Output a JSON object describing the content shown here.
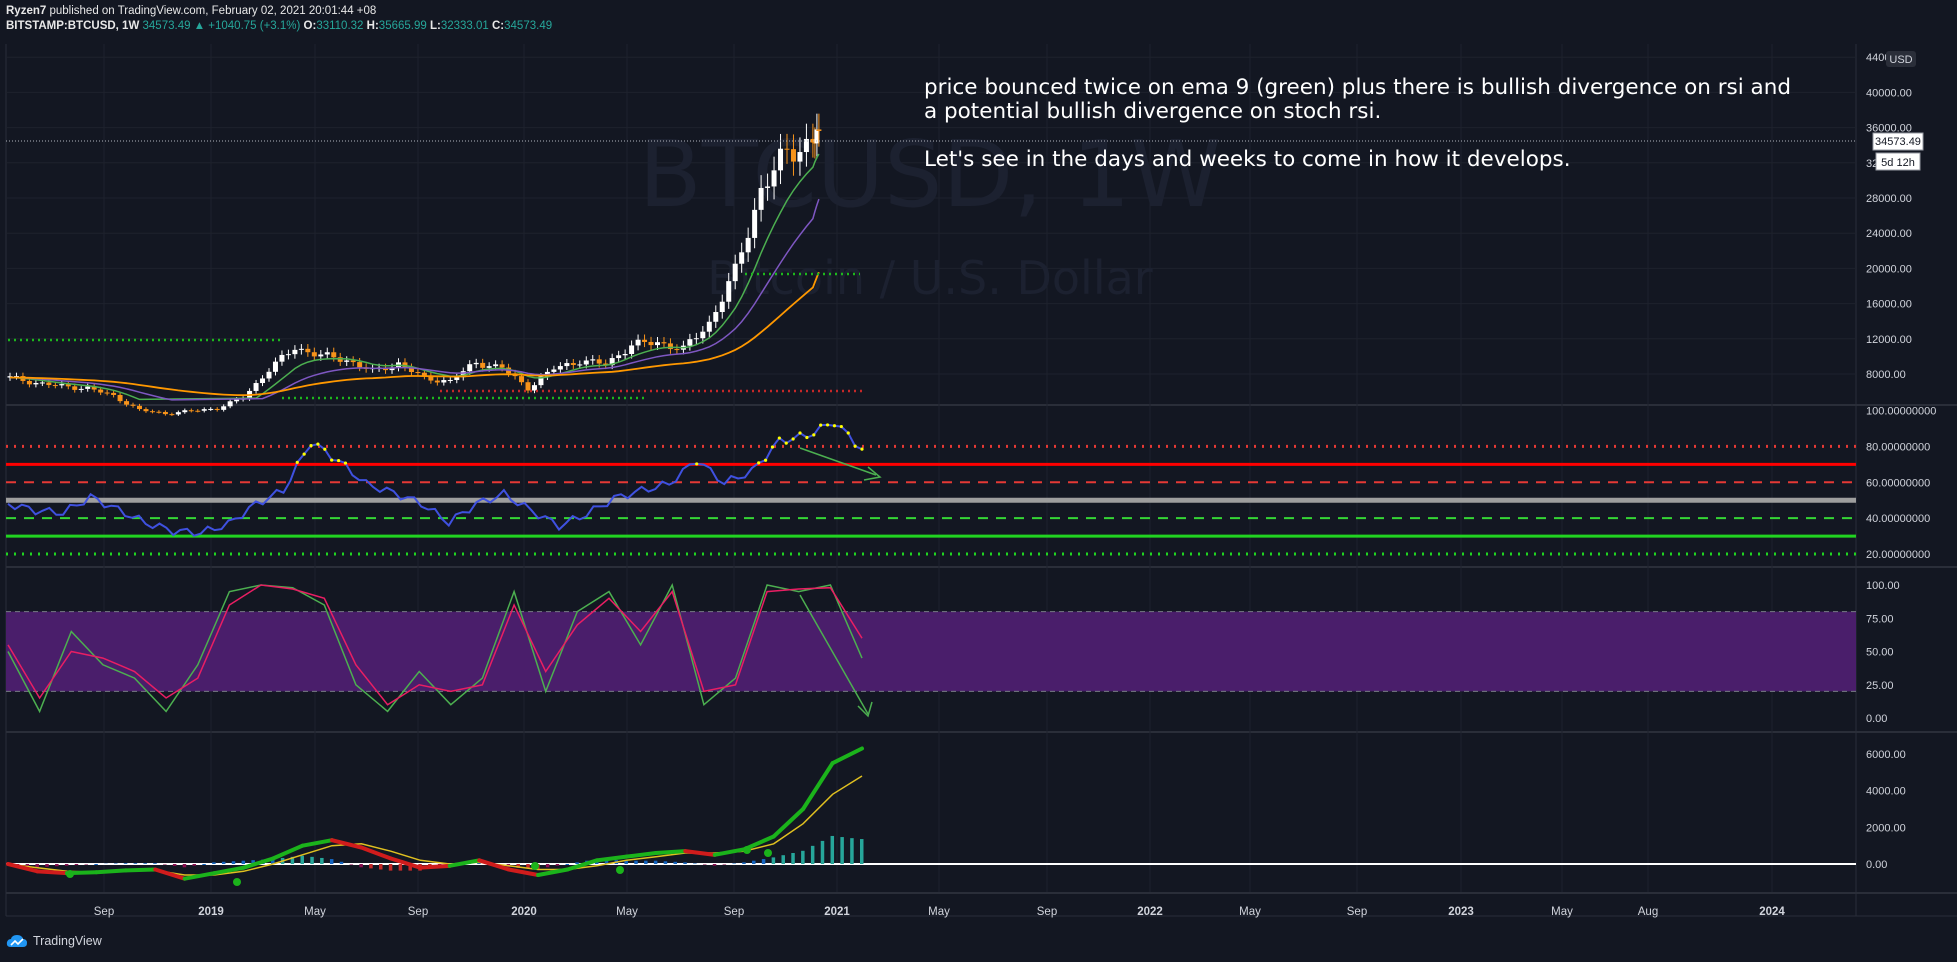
{
  "header": {
    "author": "Ryzen7",
    "published_text": "published on TradingView.com, February 02, 2021 20:01:44 +08",
    "symbol": "BITSTAMP:BTCUSD, 1W",
    "last_price": "34573.49",
    "change": "▲ +1040.75 (+3.1%)",
    "open_label": "O:",
    "open": "33110.32",
    "high_label": "H:",
    "high": "35665.99",
    "low_label": "L:",
    "low": "32333.01",
    "close_label": "C:",
    "close": "34573.49"
  },
  "annotation": {
    "line1": "price bounced twice on ema 9 (green) plus there is bullish divergence on rsi and a potential bullish divergence on stoch rsi.",
    "line2": "Let's see in the days and weeks to come in how it develops."
  },
  "footer": {
    "brand": "TradingView",
    "logo_icon": "tradingview-cloud-icon"
  },
  "colors": {
    "background": "#131722",
    "grid": "#1e222d",
    "up": "#ffffff",
    "down": "#f7931a",
    "ema9": "#4caf50",
    "ema21": "#7e57c2",
    "ema55": "#ff9800",
    "rsi": "#3f51e0",
    "rsi_overbought": "#ffff00",
    "stoch_k": "#4caf50",
    "stoch_d": "#e91e63",
    "stoch_band": "#4a1e6b",
    "macd_up": "#1bb31b",
    "macd_down": "#d01c1c",
    "signal": "#e0c020"
  },
  "chart_data": [
    {
      "type": "candlestick",
      "title": "BTCUSD, 1W",
      "subtitle": "Bitcoin / U.S. Dollar",
      "currency": "USD",
      "ylim": [
        4500,
        44000
      ],
      "yticks": [
        "44000.00",
        "40000.00",
        "36000.00",
        "32000.00",
        "28000.00",
        "24000.00",
        "20000.00",
        "16000.00",
        "12000.00",
        "8000.00"
      ],
      "price_label": "34573.49",
      "countdown_label": "5d 12h",
      "x_ticks": [
        "Sep",
        "2019",
        "May",
        "Sep",
        "2020",
        "May",
        "Sep",
        "2021",
        "May",
        "Sep",
        "2022",
        "May",
        "Sep",
        "2023",
        "May",
        "Aug",
        "2024"
      ],
      "close_series": [
        {
          "t": "2018-07",
          "v": 7600
        },
        {
          "t": "2018-08",
          "v": 7000
        },
        {
          "t": "2018-09",
          "v": 6600
        },
        {
          "t": "2018-10",
          "v": 6400
        },
        {
          "t": "2018-11",
          "v": 5500
        },
        {
          "t": "2018-12",
          "v": 3900
        },
        {
          "t": "2019-01",
          "v": 3500
        },
        {
          "t": "2019-02",
          "v": 3800
        },
        {
          "t": "2019-03",
          "v": 4100
        },
        {
          "t": "2019-04",
          "v": 5300
        },
        {
          "t": "2019-05",
          "v": 8500
        },
        {
          "t": "2019-06",
          "v": 11000
        },
        {
          "t": "2019-07",
          "v": 10100
        },
        {
          "t": "2019-08",
          "v": 9600
        },
        {
          "t": "2019-09",
          "v": 8300
        },
        {
          "t": "2019-10",
          "v": 9200
        },
        {
          "t": "2019-11",
          "v": 7500
        },
        {
          "t": "2019-12",
          "v": 7200
        },
        {
          "t": "2020-01",
          "v": 9300
        },
        {
          "t": "2020-02",
          "v": 8700
        },
        {
          "t": "2020-03",
          "v": 6400
        },
        {
          "t": "2020-04",
          "v": 8600
        },
        {
          "t": "2020-05",
          "v": 9500
        },
        {
          "t": "2020-06",
          "v": 9100
        },
        {
          "t": "2020-07",
          "v": 11300
        },
        {
          "t": "2020-08",
          "v": 11600
        },
        {
          "t": "2020-09",
          "v": 10800
        },
        {
          "t": "2020-10",
          "v": 13800
        },
        {
          "t": "2020-11",
          "v": 19600
        },
        {
          "t": "2020-12",
          "v": 29000
        },
        {
          "t": "2021-01",
          "v": 33100
        },
        {
          "t": "2021-02",
          "v": 34573
        }
      ]
    },
    {
      "type": "line",
      "name": "RSI",
      "ylim": [
        15,
        100
      ],
      "yticks": [
        "100.00000000",
        "80.00000000",
        "60.00000000",
        "40.00000000",
        "20.00000000"
      ],
      "levels": [
        80,
        70,
        60,
        50,
        40,
        30,
        20
      ],
      "values": [
        48,
        42,
        46,
        50,
        44,
        40,
        30,
        33,
        38,
        45,
        58,
        82,
        70,
        62,
        52,
        48,
        40,
        45,
        55,
        45,
        33,
        45,
        50,
        54,
        62,
        70,
        60,
        68,
        80,
        88,
        94,
        76
      ]
    },
    {
      "type": "line",
      "name": "Stoch RSI",
      "ylim": [
        0,
        100
      ],
      "yticks": [
        "100.00",
        "75.00",
        "50.00",
        "25.00",
        "0.00"
      ],
      "band": [
        20,
        80
      ],
      "k": [
        50,
        5,
        65,
        40,
        30,
        5,
        40,
        95,
        100,
        98,
        85,
        25,
        5,
        35,
        10,
        30,
        95,
        20,
        80,
        95,
        55,
        100,
        10,
        30,
        100,
        95,
        100,
        45
      ],
      "d": [
        55,
        15,
        50,
        45,
        35,
        15,
        30,
        85,
        100,
        97,
        90,
        40,
        10,
        25,
        20,
        25,
        85,
        35,
        70,
        90,
        65,
        95,
        20,
        25,
        95,
        97,
        98,
        60
      ]
    },
    {
      "type": "bar",
      "name": "MACD",
      "ylim": [
        -1500,
        7000
      ],
      "yticks": [
        "6000.00",
        "4000.00",
        "2000.00",
        "0.00"
      ],
      "macd": [
        0,
        -400,
        -500,
        -450,
        -350,
        -300,
        -800,
        -500,
        -200,
        300,
        1000,
        1300,
        900,
        300,
        -200,
        -100,
        200,
        -300,
        -600,
        -300,
        200,
        400,
        600,
        700,
        500,
        800,
        1500,
        3000,
        5500,
        6300
      ],
      "signal": [
        0,
        -200,
        -400,
        -450,
        -400,
        -350,
        -600,
        -600,
        -400,
        0,
        500,
        1000,
        1100,
        700,
        200,
        0,
        100,
        -100,
        -300,
        -300,
        -100,
        200,
        400,
        600,
        600,
        700,
        1100,
        2200,
        3800,
        4800
      ]
    }
  ]
}
